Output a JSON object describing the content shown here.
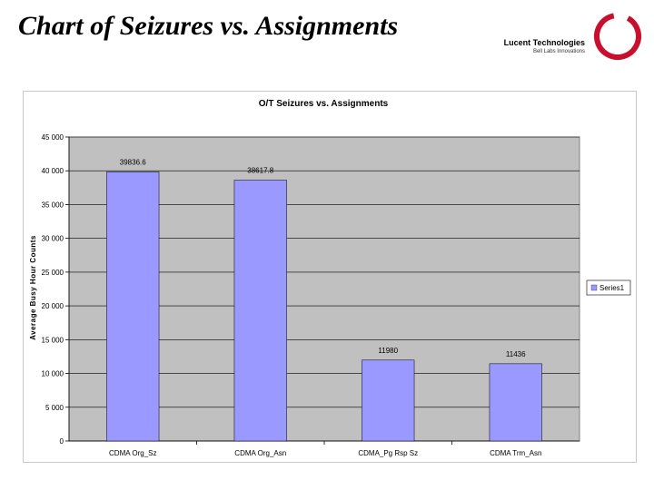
{
  "slide": {
    "title": "Chart of Seizures vs. Assignments"
  },
  "brand": {
    "name": "Lucent Technologies",
    "tagline": "Bell Labs Innovations",
    "logo_color": "#c8102e"
  },
  "chart_data": {
    "type": "bar",
    "title": "O/T Seizures vs. Assignments",
    "ylabel": "Average Busy Hour Counts",
    "xlabel": "",
    "categories": [
      "CDMA Org_Sz",
      "CDMA Org_Asn",
      "CDMA_Pg Rsp Sz",
      "CDMA Trm_Asn"
    ],
    "series": [
      {
        "name": "Series1",
        "values": [
          39836.6,
          38617.8,
          11980,
          11436
        ],
        "value_labels": [
          "39836.6",
          "38617.8",
          "11980",
          "11436"
        ],
        "color": "#9999ff"
      }
    ],
    "ylim": [
      0,
      45000
    ],
    "yticks": [
      0,
      5000,
      10000,
      15000,
      20000,
      25000,
      30000,
      35000,
      40000,
      45000
    ],
    "ytick_labels": [
      "0",
      "5 000",
      "10 000",
      "15 000",
      "20 000",
      "25 000",
      "30 000",
      "35 000",
      "40 000",
      "45 000"
    ],
    "grid": true,
    "plot_background": "#c0c0c0",
    "legend": "right"
  }
}
